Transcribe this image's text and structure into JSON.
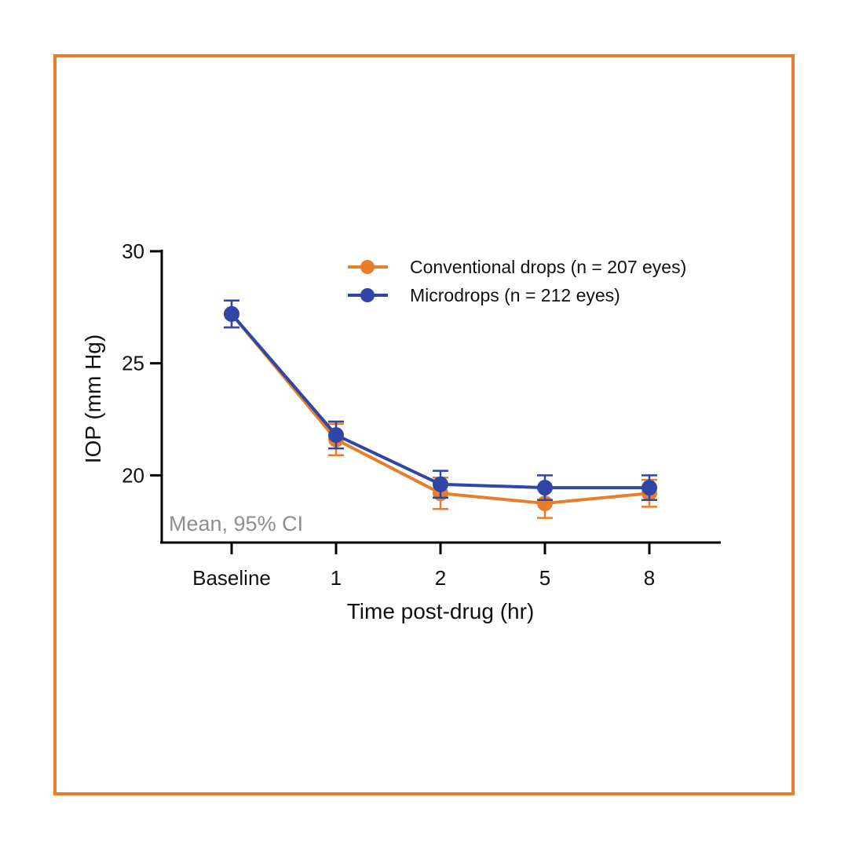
{
  "chart_data": {
    "type": "line",
    "title": "",
    "xlabel": "Time post-drug (hr)",
    "ylabel": "IOP (mm Hg)",
    "categories": [
      "Baseline",
      "1",
      "2",
      "5",
      "8"
    ],
    "ylim": [
      17,
      30
    ],
    "yticks": [
      20,
      25,
      30
    ],
    "grid": false,
    "legend_position": "top-right",
    "annotation": "Mean, 95% CI",
    "series": [
      {
        "name": "Conventional drops (n = 207 eyes)",
        "color": "#e87e2b",
        "values": [
          27.2,
          21.6,
          19.2,
          18.75,
          19.2
        ],
        "ci_low": [
          26.6,
          20.9,
          18.5,
          18.1,
          18.6
        ],
        "ci_high": [
          27.8,
          22.3,
          19.9,
          19.4,
          19.8
        ]
      },
      {
        "name": "Microdrops (n = 212 eyes)",
        "color": "#2f46a5",
        "values": [
          27.2,
          21.8,
          19.6,
          19.45,
          19.45
        ],
        "ci_low": [
          26.6,
          21.2,
          19.0,
          18.9,
          18.9
        ],
        "ci_high": [
          27.8,
          22.4,
          20.2,
          20.0,
          20.0
        ]
      }
    ]
  }
}
